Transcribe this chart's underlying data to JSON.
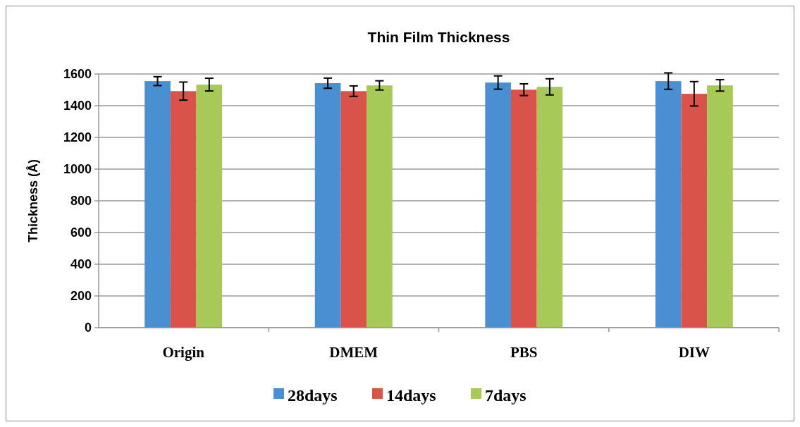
{
  "chart_data": {
    "type": "bar",
    "title": "Thin Film Thickness",
    "ylabel": "Thickness (Å)",
    "categories": [
      "Origin",
      "DMEM",
      "PBS",
      "DIW"
    ],
    "series": [
      {
        "name": "28days",
        "color": "#4a8fd2",
        "values": [
          1555,
          1542,
          1546,
          1555
        ],
        "errors": [
          28,
          32,
          42,
          52
        ]
      },
      {
        "name": "14days",
        "color": "#d9534a",
        "values": [
          1492,
          1492,
          1501,
          1475
        ],
        "errors": [
          57,
          33,
          37,
          77
        ]
      },
      {
        "name": "7days",
        "color": "#a7c957",
        "values": [
          1533,
          1528,
          1519,
          1528
        ],
        "errors": [
          40,
          29,
          51,
          36
        ]
      }
    ],
    "ylim": [
      0,
      1600
    ],
    "yticks": [
      0,
      200,
      400,
      600,
      800,
      1000,
      1200,
      1400,
      1600
    ],
    "grid": "y",
    "legend": "bottom"
  }
}
